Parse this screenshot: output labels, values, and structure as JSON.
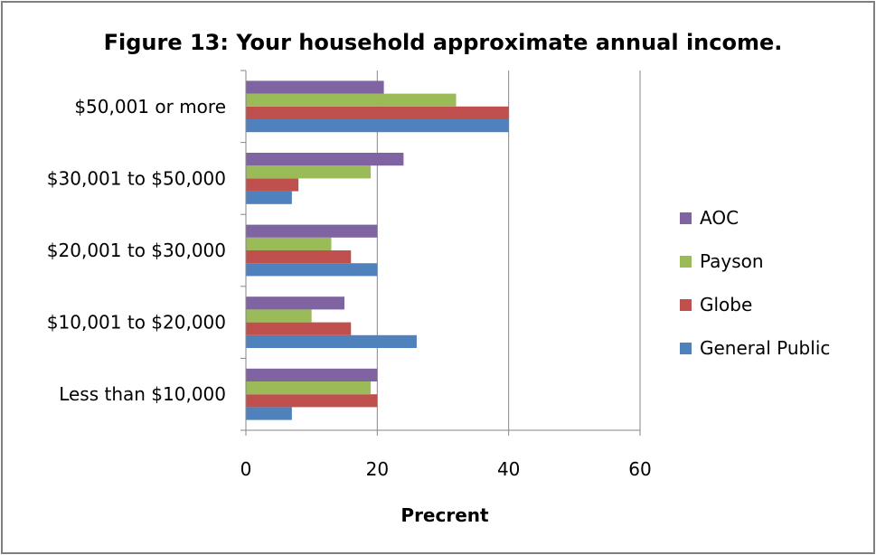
{
  "chart_data": {
    "type": "bar",
    "orientation": "horizontal",
    "title": "Figure 13:  Your household approximate annual income.",
    "xlabel": "Precrent",
    "ylabel": "",
    "xlim": [
      0,
      60
    ],
    "xticks": [
      "0",
      "20",
      "40",
      "60"
    ],
    "grid": true,
    "legend_position": "right",
    "categories": [
      "Less than $10,000",
      "$10,001 to $20,000",
      "$20,001 to $30,000",
      "$30,001 to $50,000",
      "$50,001 or more"
    ],
    "series": [
      {
        "name": "General Public",
        "color": "#4f81bd",
        "values": [
          7,
          26,
          20,
          7,
          40
        ]
      },
      {
        "name": "Globe",
        "color": "#c0504d",
        "values": [
          20,
          16,
          16,
          8,
          40
        ]
      },
      {
        "name": "Payson",
        "color": "#9bbb59",
        "values": [
          19,
          10,
          13,
          19,
          32
        ]
      },
      {
        "name": "AOC",
        "color": "#8064a2",
        "values": [
          20,
          15,
          20,
          24,
          21
        ]
      }
    ]
  }
}
